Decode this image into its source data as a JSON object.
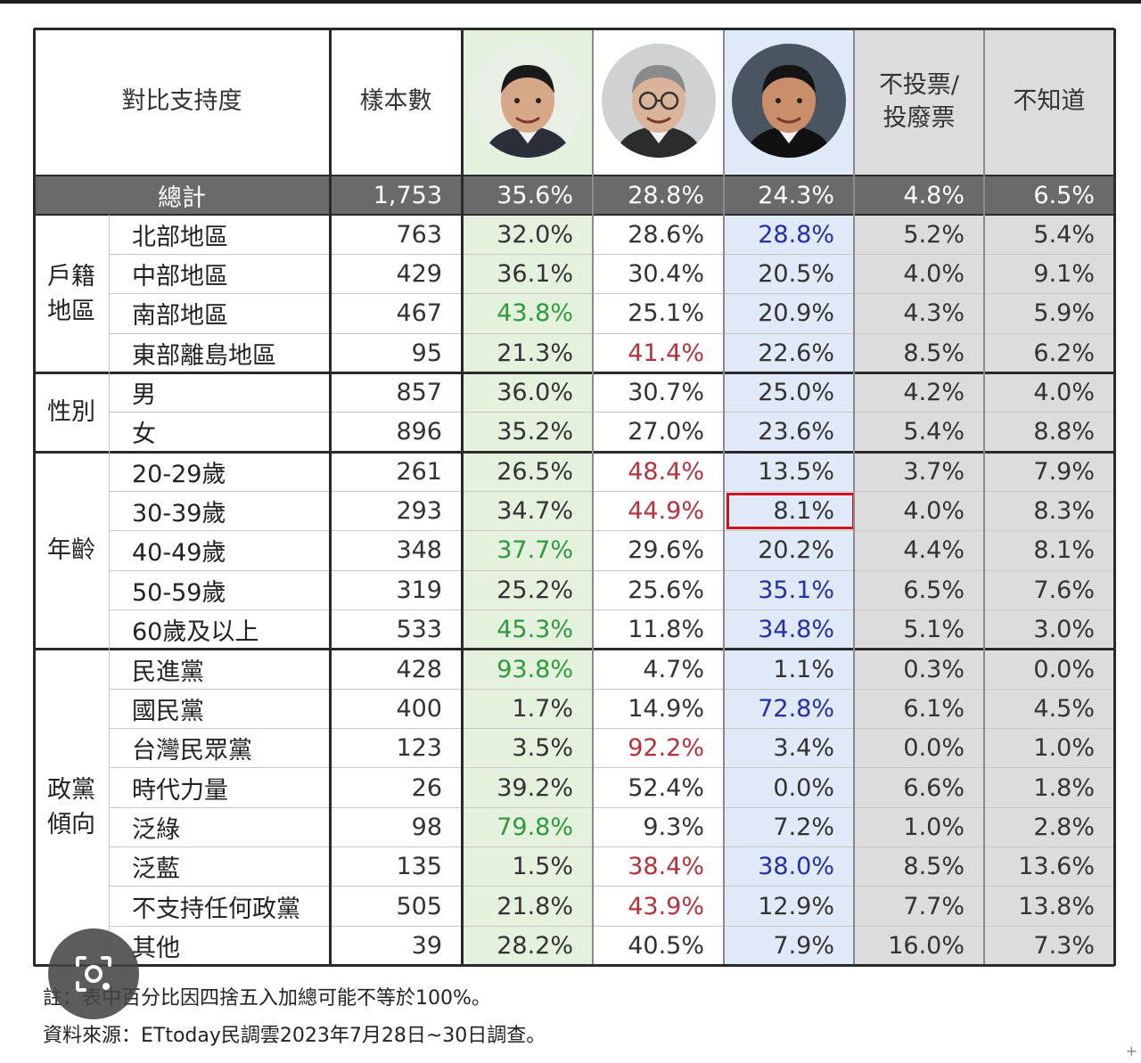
{
  "colors": {
    "green": "#2e9a3e",
    "red": "#b5323c",
    "blue": "#2430a8",
    "text": "#333333",
    "lai_bg": "#e4f1dc",
    "hou_bg": "#dfe9f7",
    "other_bg": "#dcdcdc",
    "total_bg": "#6a6a6a",
    "highlight": "#d0121b"
  },
  "header": {
    "title": "對比支持度",
    "sample": "樣本數",
    "candidates": [
      {
        "photo_icon": "candidate-lai-photo-icon"
      },
      {
        "photo_icon": "candidate-ko-photo-icon"
      },
      {
        "photo_icon": "candidate-hou-photo-icon"
      }
    ],
    "invalid_line1": "不投票/",
    "invalid_line2": "投廢票",
    "unknown": "不知道"
  },
  "total": {
    "label": "總計",
    "values": [
      "1,753",
      "35.6%",
      "28.8%",
      "24.3%",
      "4.8%",
      "6.5%"
    ]
  },
  "groups": [
    {
      "label_lines": [
        "戶籍",
        "地區"
      ],
      "rows": [
        {
          "label": "北部地區",
          "values": [
            "763",
            "32.0%",
            "28.6%",
            "28.8%",
            "5.2%",
            "5.4%"
          ],
          "colors": [
            null,
            null,
            null,
            "blue",
            null,
            null
          ]
        },
        {
          "label": "中部地區",
          "values": [
            "429",
            "36.1%",
            "30.4%",
            "20.5%",
            "4.0%",
            "9.1%"
          ],
          "colors": [
            null,
            null,
            null,
            null,
            null,
            null
          ]
        },
        {
          "label": "南部地區",
          "values": [
            "467",
            "43.8%",
            "25.1%",
            "20.9%",
            "4.3%",
            "5.9%"
          ],
          "colors": [
            null,
            "green",
            null,
            null,
            null,
            null
          ]
        },
        {
          "label": "東部離島地區",
          "values": [
            "95",
            "21.3%",
            "41.4%",
            "22.6%",
            "8.5%",
            "6.2%"
          ],
          "colors": [
            null,
            null,
            "red",
            null,
            null,
            null
          ]
        }
      ]
    },
    {
      "label_lines": [
        "性別"
      ],
      "rows": [
        {
          "label": "男",
          "values": [
            "857",
            "36.0%",
            "30.7%",
            "25.0%",
            "4.2%",
            "4.0%"
          ],
          "colors": [
            null,
            null,
            null,
            null,
            null,
            null
          ]
        },
        {
          "label": "女",
          "values": [
            "896",
            "35.2%",
            "27.0%",
            "23.6%",
            "5.4%",
            "8.8%"
          ],
          "colors": [
            null,
            null,
            null,
            null,
            null,
            null
          ]
        }
      ]
    },
    {
      "label_lines": [
        "年齡"
      ],
      "rows": [
        {
          "label": "20-29歲",
          "values": [
            "261",
            "26.5%",
            "48.4%",
            "13.5%",
            "3.7%",
            "7.9%"
          ],
          "colors": [
            null,
            null,
            "red",
            null,
            null,
            null
          ]
        },
        {
          "label": "30-39歲",
          "values": [
            "293",
            "34.7%",
            "44.9%",
            "8.1%",
            "4.0%",
            "8.3%"
          ],
          "colors": [
            null,
            null,
            "red",
            null,
            null,
            null
          ],
          "highlight": 3
        },
        {
          "label": "40-49歲",
          "values": [
            "348",
            "37.7%",
            "29.6%",
            "20.2%",
            "4.4%",
            "8.1%"
          ],
          "colors": [
            null,
            "green",
            null,
            null,
            null,
            null
          ]
        },
        {
          "label": "50-59歲",
          "values": [
            "319",
            "25.2%",
            "25.6%",
            "35.1%",
            "6.5%",
            "7.6%"
          ],
          "colors": [
            null,
            null,
            null,
            "blue",
            null,
            null
          ]
        },
        {
          "label": "60歲及以上",
          "values": [
            "533",
            "45.3%",
            "11.8%",
            "34.8%",
            "5.1%",
            "3.0%"
          ],
          "colors": [
            null,
            "green",
            null,
            "blue",
            null,
            null
          ]
        }
      ]
    },
    {
      "label_lines": [
        "政黨",
        "傾向"
      ],
      "rows": [
        {
          "label": "民進黨",
          "values": [
            "428",
            "93.8%",
            "4.7%",
            "1.1%",
            "0.3%",
            "0.0%"
          ],
          "colors": [
            null,
            "green",
            null,
            null,
            null,
            null
          ]
        },
        {
          "label": "國民黨",
          "values": [
            "400",
            "1.7%",
            "14.9%",
            "72.8%",
            "6.1%",
            "4.5%"
          ],
          "colors": [
            null,
            null,
            null,
            "blue",
            null,
            null
          ]
        },
        {
          "label": "台灣民眾黨",
          "values": [
            "123",
            "3.5%",
            "92.2%",
            "3.4%",
            "0.0%",
            "1.0%"
          ],
          "colors": [
            null,
            null,
            "red",
            null,
            null,
            null
          ]
        },
        {
          "label": "時代力量",
          "values": [
            "26",
            "39.2%",
            "52.4%",
            "0.0%",
            "6.6%",
            "1.8%"
          ],
          "colors": [
            null,
            null,
            null,
            null,
            null,
            null
          ]
        },
        {
          "label": "泛綠",
          "values": [
            "98",
            "79.8%",
            "9.3%",
            "7.2%",
            "1.0%",
            "2.8%"
          ],
          "colors": [
            null,
            "green",
            null,
            null,
            null,
            null
          ]
        },
        {
          "label": "泛藍",
          "values": [
            "135",
            "1.5%",
            "38.4%",
            "38.0%",
            "8.5%",
            "13.6%"
          ],
          "colors": [
            null,
            null,
            "red",
            "blue",
            null,
            null
          ]
        },
        {
          "label": "不支持任何政黨",
          "values": [
            "505",
            "21.8%",
            "43.9%",
            "12.9%",
            "7.7%",
            "13.8%"
          ],
          "colors": [
            null,
            null,
            "red",
            null,
            null,
            null
          ]
        },
        {
          "label": "其他",
          "values": [
            "39",
            "28.2%",
            "40.5%",
            "7.9%",
            "16.0%",
            "7.3%"
          ],
          "colors": [
            null,
            null,
            null,
            null,
            null,
            null
          ]
        }
      ]
    }
  ],
  "notes": {
    "note": "註：表中百分比因四捨五入加總可能不等於100%。",
    "source": "資料來源：ETtoday民調雲2023年7月28日~30日調查。"
  },
  "overlay": {
    "lens_icon": "google-lens-icon",
    "corner_icon": "plus-icon",
    "corner_glyph": "+"
  }
}
